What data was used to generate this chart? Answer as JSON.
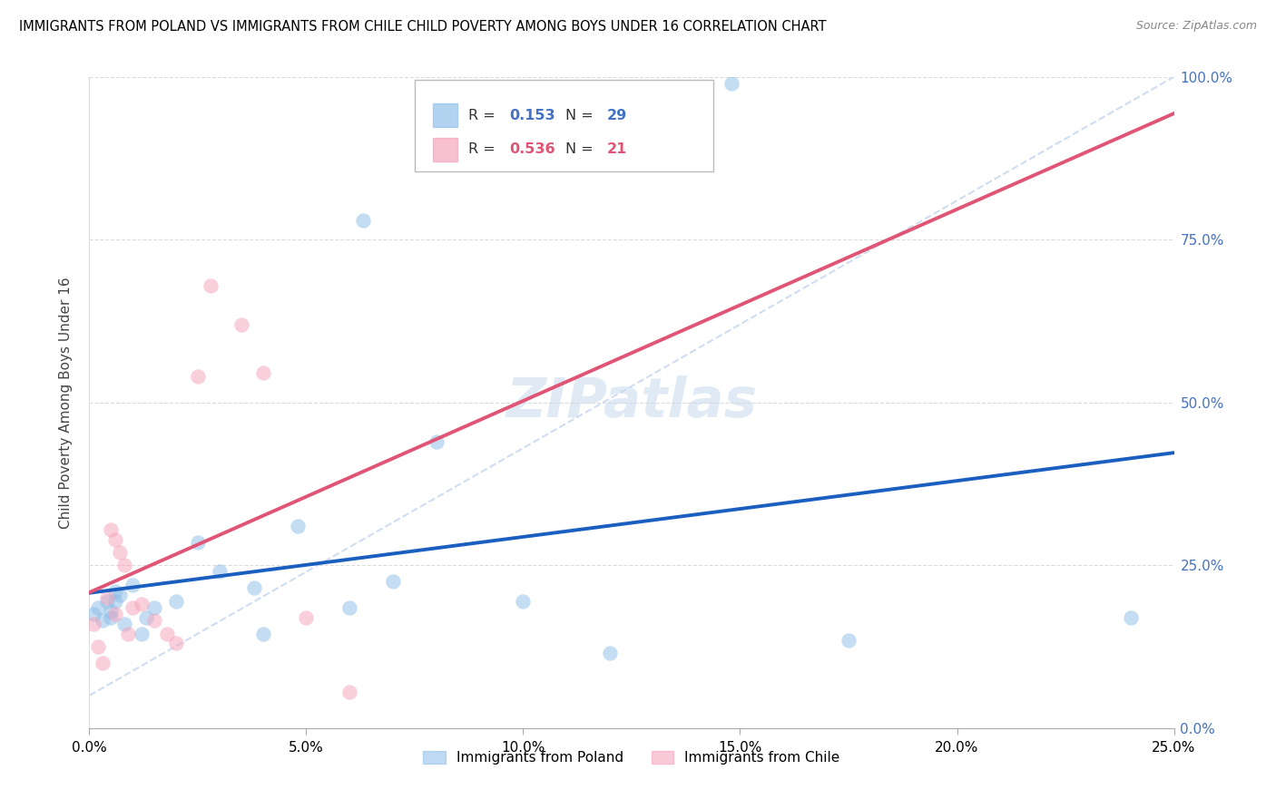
{
  "title": "IMMIGRANTS FROM POLAND VS IMMIGRANTS FROM CHILE CHILD POVERTY AMONG BOYS UNDER 16 CORRELATION CHART",
  "source": "Source: ZipAtlas.com",
  "ylabel": "Child Poverty Among Boys Under 16",
  "legend_poland": "Immigrants from Poland",
  "legend_chile": "Immigrants from Chile",
  "R_poland": "0.153",
  "N_poland": "29",
  "R_chile": "0.536",
  "N_chile": "21",
  "color_poland": "#8BBDE8",
  "color_chile": "#F5A0B8",
  "line_color_poland": "#1A5FBF",
  "line_color_chile": "#E05575",
  "ref_line_color": "#C8D8EE",
  "right_axis_color": "#4472C4",
  "R_N_val_color_poland": "#4472C4",
  "R_N_val_color_chile": "#E05575",
  "watermark": "ZIPatlas",
  "watermark_color": "#C8DAEE",
  "poland_x": [
    0.001,
    0.002,
    0.003,
    0.004,
    0.005,
    0.005,
    0.006,
    0.006,
    0.007,
    0.008,
    0.01,
    0.012,
    0.013,
    0.015,
    0.02,
    0.025,
    0.03,
    0.038,
    0.04,
    0.048,
    0.06,
    0.063,
    0.07,
    0.08,
    0.1,
    0.12,
    0.148,
    0.175,
    0.24
  ],
  "poland_y": [
    0.175,
    0.185,
    0.165,
    0.195,
    0.18,
    0.17,
    0.21,
    0.195,
    0.205,
    0.16,
    0.22,
    0.145,
    0.17,
    0.185,
    0.195,
    0.285,
    0.24,
    0.215,
    0.145,
    0.31,
    0.185,
    0.78,
    0.225,
    0.44,
    0.195,
    0.115,
    0.99,
    0.135,
    0.17
  ],
  "chile_x": [
    0.001,
    0.002,
    0.003,
    0.004,
    0.005,
    0.006,
    0.006,
    0.007,
    0.008,
    0.009,
    0.01,
    0.012,
    0.015,
    0.018,
    0.02,
    0.025,
    0.028,
    0.035,
    0.04,
    0.05,
    0.06
  ],
  "chile_y": [
    0.16,
    0.125,
    0.1,
    0.2,
    0.305,
    0.29,
    0.175,
    0.27,
    0.25,
    0.145,
    0.185,
    0.19,
    0.165,
    0.145,
    0.13,
    0.54,
    0.68,
    0.62,
    0.545,
    0.17,
    0.055
  ],
  "xlim": [
    0,
    0.25
  ],
  "ylim": [
    0,
    1.0
  ],
  "xtick_vals": [
    0.0,
    0.05,
    0.1,
    0.15,
    0.2,
    0.25
  ],
  "ytick_vals": [
    0.0,
    0.25,
    0.5,
    0.75,
    1.0
  ]
}
